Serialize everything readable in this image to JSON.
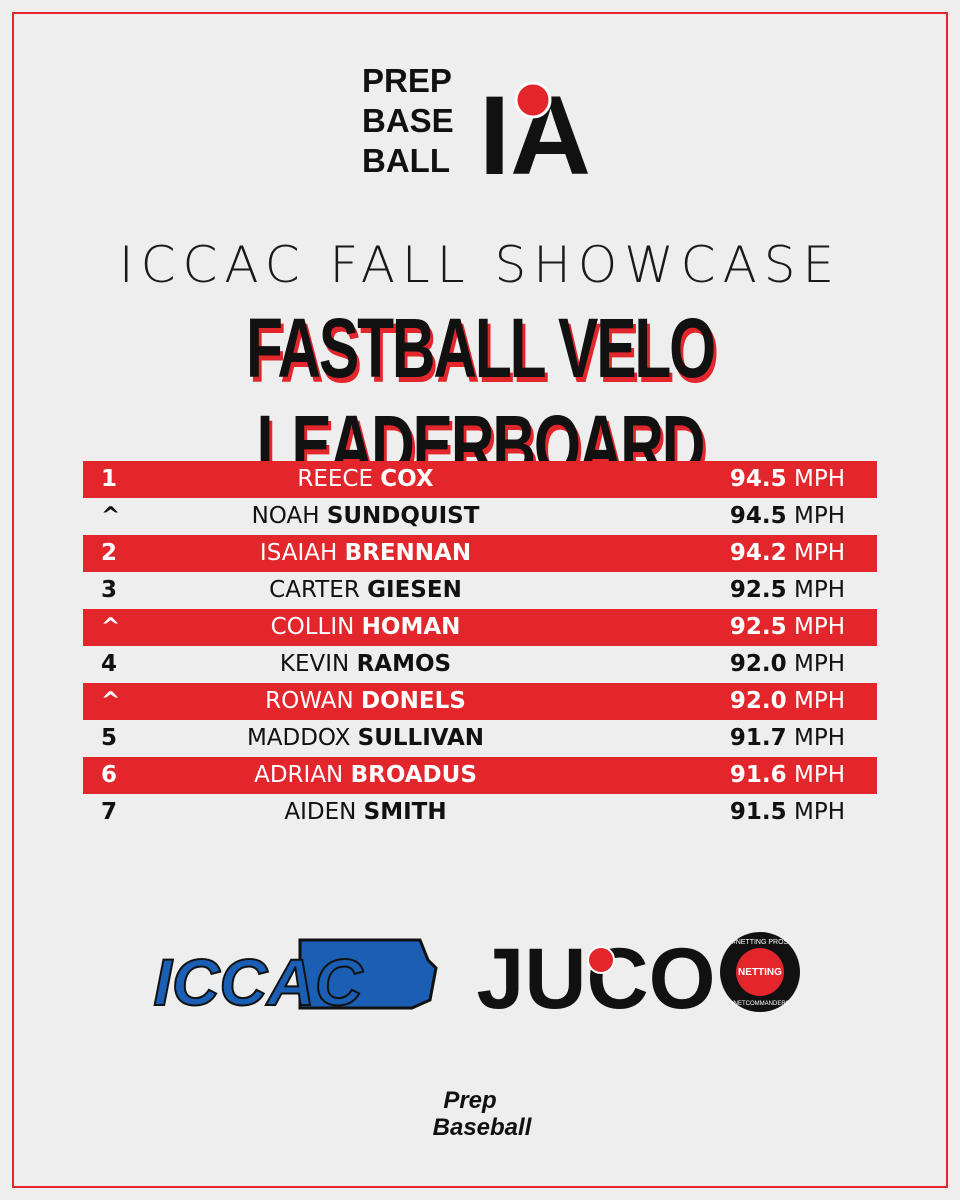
{
  "header": {
    "logo_lines": [
      "PREP",
      "BASE",
      "BALL"
    ],
    "logo_mark": "IA",
    "event": "ICCAC FALL SHOWCASE",
    "title": "FASTBALL VELO LEADERBOARD"
  },
  "table": {
    "rows": [
      {
        "rank": "1",
        "first": "REECE",
        "last": "COX",
        "velo": "94.5",
        "unit": "MPH"
      },
      {
        "rank": "^",
        "first": "NOAH",
        "last": "SUNDQUIST",
        "velo": "94.5",
        "unit": "MPH"
      },
      {
        "rank": "2",
        "first": "ISAIAH",
        "last": "BRENNAN",
        "velo": "94.2",
        "unit": "MPH"
      },
      {
        "rank": "3",
        "first": "CARTER",
        "last": "GIESEN",
        "velo": "92.5",
        "unit": "MPH"
      },
      {
        "rank": "^",
        "first": "COLLIN",
        "last": "HOMAN",
        "velo": "92.5",
        "unit": "MPH"
      },
      {
        "rank": "4",
        "first": "KEVIN",
        "last": "RAMOS",
        "velo": "92.0",
        "unit": "MPH"
      },
      {
        "rank": "^",
        "first": "ROWAN",
        "last": "DONELS",
        "velo": "92.0",
        "unit": "MPH"
      },
      {
        "rank": "5",
        "first": "MADDOX",
        "last": "SULLIVAN",
        "velo": "91.7",
        "unit": "MPH"
      },
      {
        "rank": "6",
        "first": "ADRIAN",
        "last": "BROADUS",
        "velo": "91.6",
        "unit": "MPH"
      },
      {
        "rank": "7",
        "first": "AIDEN",
        "last": "SMITH",
        "velo": "91.5",
        "unit": "MPH"
      }
    ]
  },
  "footer": {
    "iccac": "ICCAC",
    "juco": "JUCO",
    "netting_top": "#NETTING PROS",
    "netting_mid": "NETTING",
    "netting_bottom": "#NETCOMMANDERS",
    "brand_top": "Prep",
    "brand_bottom": "Baseball"
  }
}
